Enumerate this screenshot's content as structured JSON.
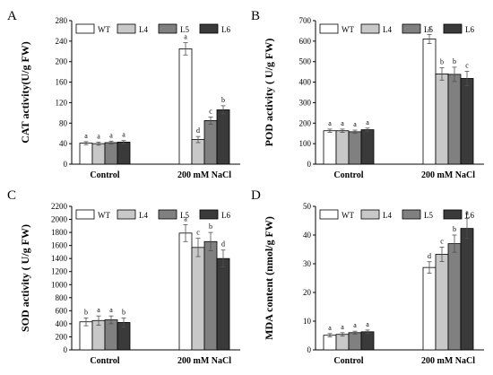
{
  "chart_data": [
    {
      "type": "bar",
      "panel": "A",
      "ylabel": "CAT activity(U/g FW)",
      "categories": [
        "Control",
        "200 mM NaCl"
      ],
      "ylim": [
        0,
        280
      ],
      "yticks": [
        0,
        40,
        80,
        120,
        160,
        200,
        240,
        280
      ],
      "series": [
        {
          "name": "WT",
          "values": [
            41,
            225
          ],
          "errors": [
            3,
            12
          ],
          "letters": [
            "a",
            "a"
          ]
        },
        {
          "name": "L4",
          "values": [
            40,
            48
          ],
          "errors": [
            3,
            6
          ],
          "letters": [
            "a",
            "d"
          ]
        },
        {
          "name": "L5",
          "values": [
            42,
            85
          ],
          "errors": [
            3,
            7
          ],
          "letters": [
            "a",
            "c"
          ]
        },
        {
          "name": "L6",
          "values": [
            43,
            106
          ],
          "errors": [
            3,
            8
          ],
          "letters": [
            "a",
            "b"
          ]
        }
      ]
    },
    {
      "type": "bar",
      "panel": "B",
      "ylabel": "POD activity ( U/g FW)",
      "categories": [
        "Control",
        "200 mM NaCl"
      ],
      "ylim": [
        0,
        700
      ],
      "yticks": [
        0,
        100,
        200,
        300,
        400,
        500,
        600,
        700
      ],
      "series": [
        {
          "name": "WT",
          "values": [
            163,
            610
          ],
          "errors": [
            8,
            22
          ],
          "letters": [
            "a",
            "a"
          ]
        },
        {
          "name": "L4",
          "values": [
            163,
            440
          ],
          "errors": [
            8,
            30
          ],
          "letters": [
            "a",
            "b"
          ]
        },
        {
          "name": "L5",
          "values": [
            158,
            438
          ],
          "errors": [
            8,
            35
          ],
          "letters": [
            "a",
            "b"
          ]
        },
        {
          "name": "L6",
          "values": [
            168,
            418
          ],
          "errors": [
            8,
            35
          ],
          "letters": [
            "a",
            "c"
          ]
        }
      ]
    },
    {
      "type": "bar",
      "panel": "C",
      "ylabel": "SOD activity ( U/g FW)",
      "categories": [
        "Control",
        "200 mM NaCl"
      ],
      "ylim": [
        0,
        2200
      ],
      "yticks": [
        0,
        200,
        400,
        600,
        800,
        1000,
        1200,
        1400,
        1600,
        1800,
        2000,
        2200
      ],
      "series": [
        {
          "name": "WT",
          "values": [
            430,
            1790
          ],
          "errors": [
            60,
            130
          ],
          "letters": [
            "b",
            "a"
          ]
        },
        {
          "name": "L4",
          "values": [
            450,
            1570
          ],
          "errors": [
            70,
            140
          ],
          "letters": [
            "a",
            "c"
          ]
        },
        {
          "name": "L5",
          "values": [
            460,
            1660
          ],
          "errors": [
            60,
            140
          ],
          "letters": [
            "a",
            "b"
          ]
        },
        {
          "name": "L6",
          "values": [
            420,
            1400
          ],
          "errors": [
            70,
            130
          ],
          "letters": [
            "b",
            "d"
          ]
        }
      ]
    },
    {
      "type": "bar",
      "panel": "D",
      "ylabel": "MDA content (nmol/g FW)",
      "categories": [
        "Control",
        "200 mM NaCl"
      ],
      "ylim": [
        0,
        50
      ],
      "yticks": [
        0,
        10,
        20,
        30,
        40,
        50
      ],
      "series": [
        {
          "name": "WT",
          "values": [
            5.1,
            28.7
          ],
          "errors": [
            0.6,
            2.0
          ],
          "letters": [
            "a",
            "d"
          ]
        },
        {
          "name": "L4",
          "values": [
            5.4,
            33.3
          ],
          "errors": [
            0.6,
            2.5
          ],
          "letters": [
            "a",
            "c"
          ]
        },
        {
          "name": "L5",
          "values": [
            6.0,
            37.0
          ],
          "errors": [
            0.5,
            3.0
          ],
          "letters": [
            "a",
            "b"
          ]
        },
        {
          "name": "L6",
          "values": [
            6.3,
            42.3
          ],
          "errors": [
            0.6,
            3.5
          ],
          "letters": [
            "a",
            "a"
          ]
        }
      ]
    }
  ],
  "colors": {
    "WT": "#ffffff",
    "L4": "#c8c8c8",
    "L5": "#808080",
    "L6": "#3a3a3a",
    "outline": "#000000",
    "error": "#505050"
  }
}
